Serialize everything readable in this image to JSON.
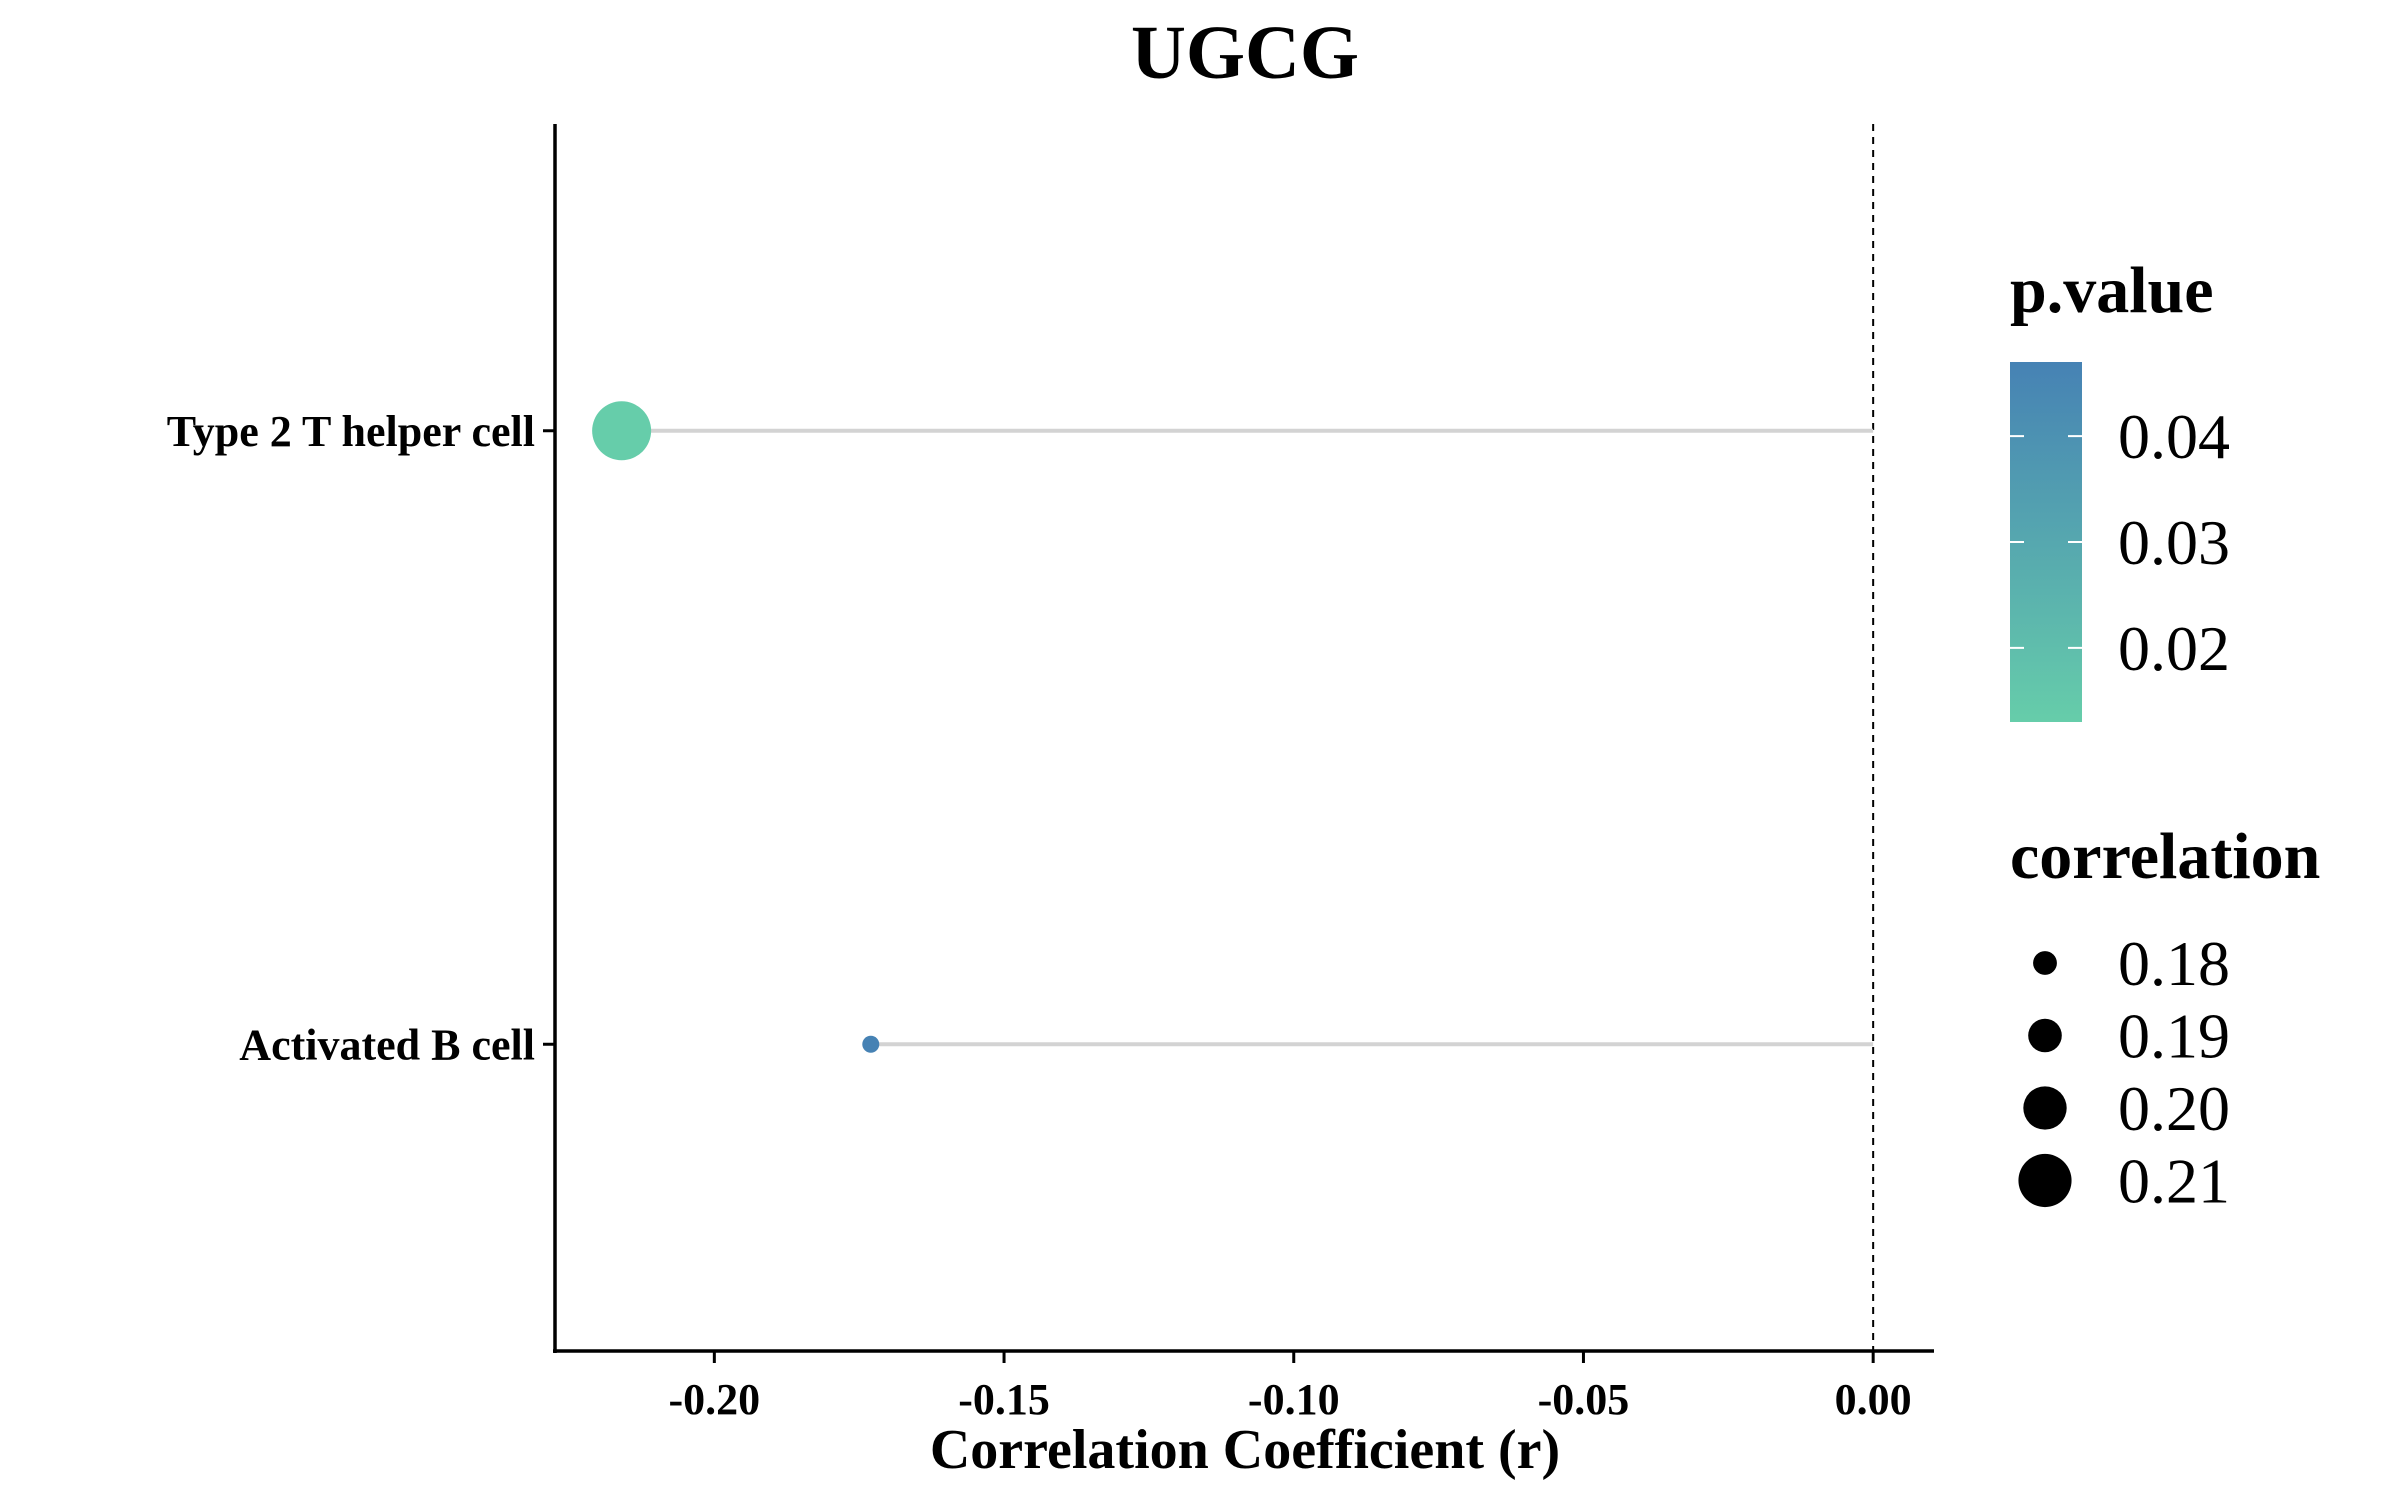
{
  "chart_data": {
    "type": "lollipop",
    "title": "UGCG",
    "xlabel": "Correlation Coefficient (r)",
    "ylabel": "",
    "xlim": [
      -0.2275,
      0.0105
    ],
    "xticks": [
      "-0.20",
      "-0.15",
      "-0.10",
      "-0.05",
      "0.00"
    ],
    "xtick_values": [
      -0.2,
      -0.15,
      -0.1,
      -0.05,
      0.0
    ],
    "reference_line_x": 0,
    "grid": false,
    "categories": [
      "Activated B cell",
      "Type 2 T helper cell"
    ],
    "points": [
      {
        "category": "Activated B cell",
        "r": -0.173,
        "p_value": 0.047,
        "correlation": 0.173
      },
      {
        "category": "Type 2 T helper cell",
        "r": -0.216,
        "p_value": 0.013,
        "correlation": 0.216
      }
    ],
    "legend_color": {
      "title": "p.value",
      "ticks": [
        "0.04",
        "0.03",
        "0.02"
      ],
      "tick_values": [
        0.04,
        0.03,
        0.02
      ],
      "range": [
        0.013,
        0.047
      ],
      "low_color": "#66CDAA",
      "high_color": "#4682B4"
    },
    "legend_size": {
      "title": "correlation",
      "labels": [
        "0.18",
        "0.19",
        "0.20",
        "0.21"
      ],
      "values": [
        0.18,
        0.19,
        0.2,
        0.21
      ]
    },
    "legend_placement": "right",
    "colors": {
      "stem": "#d3d3d3",
      "axis": "#000000",
      "marker_size_legend": "#000000"
    }
  }
}
